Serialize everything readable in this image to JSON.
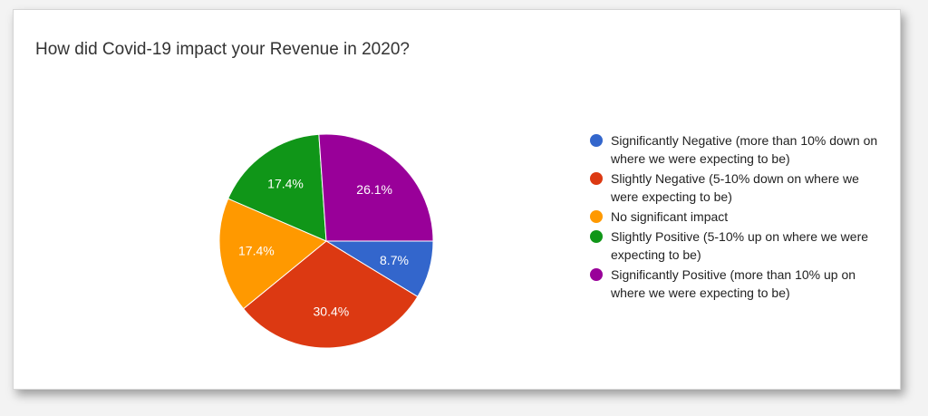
{
  "chart_data": {
    "type": "pie",
    "title": "How did Covid-19 impact your Revenue in 2020?",
    "categories": [
      "Significantly Negative (more than 10% down on where we were expecting to be)",
      "Slightly Negative (5-10% down on where we were expecting to be)",
      "No significant impact",
      "Slightly Positive (5-10% up on where we were expecting to be)",
      "Significantly Positive (more than 10% up on where we were expecting to be)"
    ],
    "values": [
      8.7,
      30.4,
      17.4,
      17.4,
      26.1
    ],
    "labels": [
      "8.7%",
      "30.4%",
      "17.4%",
      "17.4%",
      "26.1%"
    ],
    "colors": [
      "#3366cc",
      "#dc3912",
      "#ff9900",
      "#109618",
      "#990099"
    ],
    "legend_position": "right"
  }
}
